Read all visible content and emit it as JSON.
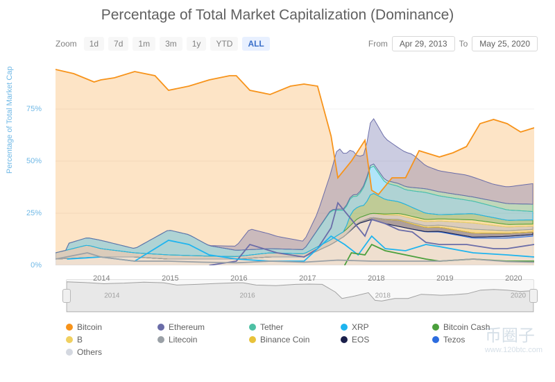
{
  "title": "Percentage of Total Market Capitalization (Dominance)",
  "zoom": {
    "label": "Zoom",
    "options": [
      "1d",
      "7d",
      "1m",
      "3m",
      "1y",
      "YTD",
      "ALL"
    ],
    "selected": "ALL"
  },
  "date_range": {
    "from_label": "From",
    "from_value": "Apr 29, 2013",
    "to_label": "To",
    "to_value": "May 25, 2020"
  },
  "chart": {
    "type": "area-line",
    "ylabel": "Percentage of Total Market Cap",
    "ylim": [
      0,
      100
    ],
    "yticks": [
      0,
      25,
      50,
      75
    ],
    "yticks_suffix": "%",
    "xticks": [
      2014,
      2015,
      2016,
      2017,
      2018,
      2019,
      2020
    ],
    "x_start": 2013.33,
    "x_end": 2020.4,
    "grid_color": "#f0f0f0",
    "background_color": "#ffffff",
    "axis_color": "#6fb8e6",
    "label_fontsize": 11,
    "line_width": 1.8,
    "btc_fill_opacity": 0.25,
    "alt_fill_opacity": 0.35
  },
  "series": [
    {
      "name": "Bitcoin",
      "color": "#f7931a",
      "data": [
        [
          2013.33,
          94
        ],
        [
          2013.6,
          92
        ],
        [
          2013.9,
          88
        ],
        [
          2014.0,
          89
        ],
        [
          2014.2,
          90
        ],
        [
          2014.5,
          93
        ],
        [
          2014.8,
          91
        ],
        [
          2015.0,
          84
        ],
        [
          2015.3,
          86
        ],
        [
          2015.6,
          89
        ],
        [
          2015.9,
          91
        ],
        [
          2016.0,
          91
        ],
        [
          2016.2,
          84
        ],
        [
          2016.5,
          82
        ],
        [
          2016.8,
          86
        ],
        [
          2017.0,
          87
        ],
        [
          2017.2,
          86
        ],
        [
          2017.4,
          62
        ],
        [
          2017.5,
          42
        ],
        [
          2017.7,
          50
        ],
        [
          2017.9,
          60
        ],
        [
          2018.0,
          36
        ],
        [
          2018.1,
          34
        ],
        [
          2018.3,
          42
        ],
        [
          2018.5,
          42
        ],
        [
          2018.7,
          55
        ],
        [
          2018.9,
          53
        ],
        [
          2019.0,
          52
        ],
        [
          2019.2,
          54
        ],
        [
          2019.4,
          57
        ],
        [
          2019.6,
          68
        ],
        [
          2019.8,
          70
        ],
        [
          2020.0,
          68
        ],
        [
          2020.2,
          64
        ],
        [
          2020.4,
          66
        ]
      ]
    },
    {
      "name": "Ethereum",
      "color": "#6a6ca8",
      "data": [
        [
          2015.6,
          0
        ],
        [
          2015.8,
          1
        ],
        [
          2016.0,
          2
        ],
        [
          2016.2,
          10
        ],
        [
          2016.4,
          8
        ],
        [
          2016.6,
          6
        ],
        [
          2016.8,
          5
        ],
        [
          2017.0,
          4
        ],
        [
          2017.2,
          8
        ],
        [
          2017.4,
          18
        ],
        [
          2017.5,
          30
        ],
        [
          2017.7,
          22
        ],
        [
          2017.9,
          14
        ],
        [
          2018.0,
          22
        ],
        [
          2018.2,
          20
        ],
        [
          2018.4,
          17
        ],
        [
          2018.6,
          16
        ],
        [
          2018.8,
          11
        ],
        [
          2019.0,
          10
        ],
        [
          2019.4,
          10
        ],
        [
          2019.8,
          8
        ],
        [
          2020.0,
          8
        ],
        [
          2020.4,
          10
        ]
      ]
    },
    {
      "name": "Tether",
      "color": "#4dc0a4",
      "data": [
        [
          2017.0,
          0
        ],
        [
          2017.5,
          0.5
        ],
        [
          2018.0,
          1
        ],
        [
          2018.5,
          1.5
        ],
        [
          2019.0,
          2
        ],
        [
          2019.5,
          2
        ],
        [
          2020.0,
          3
        ],
        [
          2020.4,
          3.5
        ]
      ]
    },
    {
      "name": "XRP",
      "color": "#1eb4ef",
      "data": [
        [
          2013.5,
          3
        ],
        [
          2014.0,
          4
        ],
        [
          2014.5,
          2
        ],
        [
          2015.0,
          12
        ],
        [
          2015.3,
          10
        ],
        [
          2015.6,
          5
        ],
        [
          2016.0,
          3
        ],
        [
          2016.5,
          2
        ],
        [
          2017.0,
          2
        ],
        [
          2017.4,
          14
        ],
        [
          2017.6,
          10
        ],
        [
          2017.8,
          5
        ],
        [
          2018.0,
          14
        ],
        [
          2018.2,
          8
        ],
        [
          2018.5,
          7
        ],
        [
          2018.8,
          10
        ],
        [
          2019.0,
          9
        ],
        [
          2019.5,
          6
        ],
        [
          2020.0,
          5
        ],
        [
          2020.4,
          4
        ]
      ]
    },
    {
      "name": "Bitcoin Cash",
      "color": "#4a9f3c",
      "data": [
        [
          2017.6,
          0
        ],
        [
          2017.7,
          6
        ],
        [
          2017.9,
          5
        ],
        [
          2018.0,
          10
        ],
        [
          2018.2,
          7
        ],
        [
          2018.5,
          5
        ],
        [
          2018.8,
          3
        ],
        [
          2019.0,
          2
        ],
        [
          2019.5,
          3
        ],
        [
          2020.0,
          2
        ],
        [
          2020.4,
          2
        ]
      ]
    },
    {
      "name": "B",
      "color": "#f0d060",
      "data": [
        [
          2018.0,
          0
        ],
        [
          2018.5,
          1
        ],
        [
          2019.0,
          1
        ],
        [
          2019.5,
          1.5
        ],
        [
          2020.0,
          1.2
        ],
        [
          2020.4,
          1
        ]
      ]
    },
    {
      "name": "Litecoin",
      "color": "#9aa0a6",
      "data": [
        [
          2013.33,
          3
        ],
        [
          2013.8,
          6
        ],
        [
          2014.0,
          4
        ],
        [
          2014.5,
          2
        ],
        [
          2015.0,
          2
        ],
        [
          2015.5,
          1.5
        ],
        [
          2016.0,
          1.2
        ],
        [
          2016.5,
          2
        ],
        [
          2017.0,
          1.5
        ],
        [
          2017.5,
          2.5
        ],
        [
          2018.0,
          2
        ],
        [
          2018.5,
          2
        ],
        [
          2019.0,
          2
        ],
        [
          2019.5,
          3
        ],
        [
          2020.0,
          1.8
        ],
        [
          2020.4,
          1.5
        ]
      ]
    },
    {
      "name": "Binance Coin",
      "color": "#e8c23a",
      "data": [
        [
          2018.0,
          0
        ],
        [
          2018.5,
          0.5
        ],
        [
          2019.0,
          1
        ],
        [
          2019.5,
          1.8
        ],
        [
          2020.0,
          1.2
        ],
        [
          2020.4,
          1.3
        ]
      ]
    },
    {
      "name": "EOS",
      "color": "#1a1f4a",
      "data": [
        [
          2017.6,
          0
        ],
        [
          2018.0,
          1
        ],
        [
          2018.4,
          3
        ],
        [
          2018.8,
          2
        ],
        [
          2019.0,
          2
        ],
        [
          2019.5,
          2
        ],
        [
          2020.0,
          1.5
        ],
        [
          2020.4,
          1.2
        ]
      ]
    },
    {
      "name": "Tezos",
      "color": "#2c6cdf",
      "data": [
        [
          2018.6,
          0
        ],
        [
          2019.0,
          0.3
        ],
        [
          2019.5,
          0.5
        ],
        [
          2020.0,
          0.9
        ],
        [
          2020.4,
          0.8
        ]
      ]
    },
    {
      "name": "Others",
      "color": "#d4d8e0",
      "data": [
        [
          2013.33,
          3
        ],
        [
          2014.0,
          4
        ],
        [
          2014.5,
          4
        ],
        [
          2015.0,
          3
        ],
        [
          2015.5,
          3
        ],
        [
          2016.0,
          3
        ],
        [
          2016.5,
          4
        ],
        [
          2017.0,
          4
        ],
        [
          2017.4,
          10
        ],
        [
          2017.6,
          14
        ],
        [
          2017.8,
          20
        ],
        [
          2018.0,
          22
        ],
        [
          2018.2,
          20
        ],
        [
          2018.5,
          18
        ],
        [
          2018.8,
          16
        ],
        [
          2019.0,
          16
        ],
        [
          2019.5,
          13
        ],
        [
          2020.0,
          13
        ],
        [
          2020.4,
          14
        ]
      ]
    }
  ],
  "legend_order": [
    "Bitcoin",
    "Ethereum",
    "Tether",
    "XRP",
    "Bitcoin Cash",
    "B",
    "Litecoin",
    "Binance Coin",
    "EOS",
    "Tezos",
    "Others"
  ],
  "navigator": {
    "ticks": [
      2014,
      2016,
      2018,
      2020
    ]
  },
  "watermark": {
    "text": "币圈子",
    "url": "www.120btc.com"
  }
}
